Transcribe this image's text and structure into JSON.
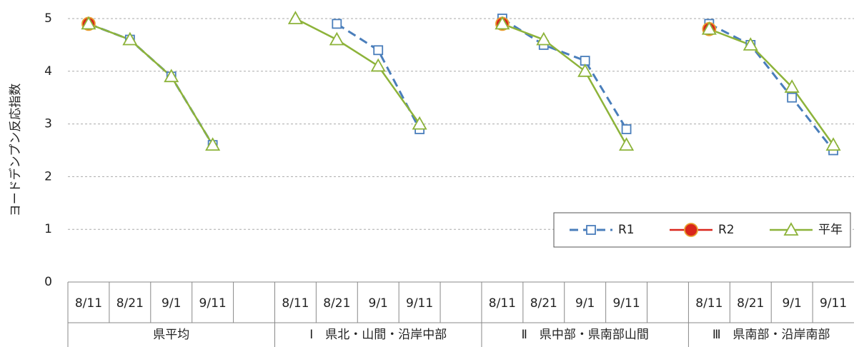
{
  "chart_data": {
    "type": "line",
    "y_label": "ヨードデンプン反応指数",
    "groups": [
      {
        "label": "県平均",
        "categories": [
          "8/11",
          "8/21",
          "9/1",
          "9/11",
          null
        ]
      },
      {
        "label": "Ⅰ　県北・山間・沿岸中部",
        "categories": [
          "8/11",
          "8/21",
          "9/1",
          "9/11",
          null
        ]
      },
      {
        "label": "Ⅱ　県中部・県南部山間",
        "categories": [
          "8/11",
          "8/21",
          "9/1",
          "9/11",
          null
        ]
      },
      {
        "label": "Ⅲ　県南部・沿岸南部",
        "categories": [
          "8/11",
          "8/21",
          "9/1",
          "9/11"
        ]
      }
    ],
    "series": [
      {
        "name": "R1",
        "color": "#4a7ebb",
        "dashed": true,
        "marker": "square",
        "values": [
          4.9,
          4.6,
          3.9,
          2.6,
          null,
          null,
          4.9,
          4.4,
          2.9,
          null,
          5.0,
          4.5,
          4.2,
          2.9,
          null,
          4.9,
          4.5,
          3.5,
          2.5
        ]
      },
      {
        "name": "R2",
        "color": "#d9261c",
        "dashed": false,
        "marker": "circle",
        "values": [
          4.9,
          null,
          null,
          null,
          null,
          null,
          null,
          null,
          null,
          null,
          4.9,
          null,
          null,
          null,
          null,
          4.8,
          null,
          null,
          null
        ]
      },
      {
        "name": "平年",
        "color": "#8db33a",
        "dashed": false,
        "marker": "triangle",
        "values": [
          4.9,
          4.6,
          3.9,
          2.6,
          null,
          5.0,
          4.6,
          4.1,
          3.0,
          null,
          4.9,
          4.6,
          4.0,
          2.6,
          null,
          4.8,
          4.5,
          3.7,
          2.6
        ]
      }
    ],
    "ylim": [
      0,
      5
    ],
    "yticks": [
      0,
      1,
      2,
      3,
      4,
      5
    ],
    "grid": true,
    "legend": "lower right"
  }
}
